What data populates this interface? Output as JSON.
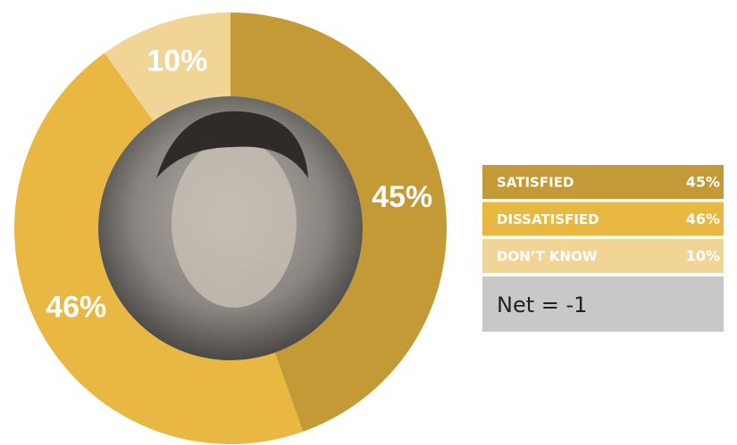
{
  "chart_data": {
    "type": "donut",
    "categories": [
      "SATISFIED",
      "DISSATISFIED",
      "DON’T KNOW"
    ],
    "values": [
      45,
      46,
      10
    ],
    "value_labels": [
      "45%",
      "46%",
      "10%"
    ],
    "colors": [
      "#c49a36",
      "#e9b843",
      "#f0d597"
    ],
    "net_label": "Net = -1"
  }
}
